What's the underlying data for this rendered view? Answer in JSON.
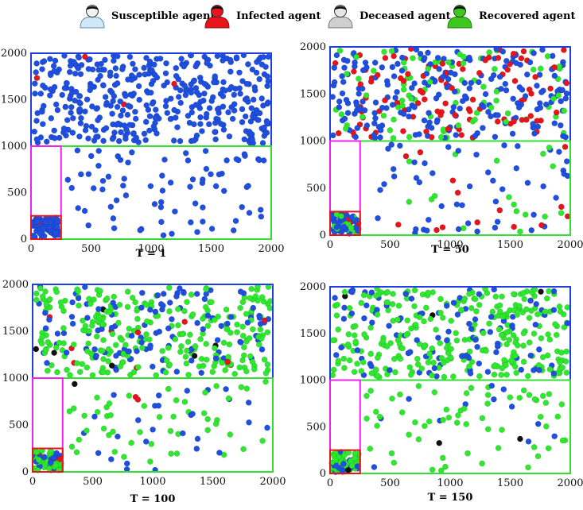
{
  "legend": [
    {
      "label": "Susceptible agent",
      "icon": "person-icon",
      "color": "#cfe8f7"
    },
    {
      "label": "Infected agent",
      "icon": "person-icon",
      "color": "#e8141b"
    },
    {
      "label": "Deceased agent",
      "icon": "person-icon",
      "color": "#cfcfcf"
    },
    {
      "label": "Recovered agent",
      "icon": "person-icon",
      "color": "#3cc81e"
    }
  ],
  "colors": {
    "susceptible": "#1f4fe0",
    "infected": "#e8141b",
    "deceased": "#111111",
    "recovered": "#2ee82e",
    "region_top": "#1f3fe0",
    "region_bottom": "#33dd33",
    "region_corridor": "#ee22ee",
    "region_home": "#e8141b"
  },
  "chart_data": [
    {
      "type": "scatter",
      "title": "T = 1",
      "xlim": [
        0,
        2000
      ],
      "ylim": [
        0,
        2000
      ],
      "xticks": [
        0,
        500,
        1000,
        1500,
        2000
      ],
      "yticks": [
        0,
        500,
        1000,
        1500,
        2000
      ],
      "regions": [
        {
          "name": "upper-zone",
          "x": [
            0,
            2000
          ],
          "y": [
            1000,
            2000
          ]
        },
        {
          "name": "lower-zone",
          "x": [
            0,
            2000
          ],
          "y": [
            0,
            1000
          ]
        },
        {
          "name": "corridor",
          "x": [
            0,
            250
          ],
          "y": [
            0,
            1000
          ]
        },
        {
          "name": "home-zone",
          "x": [
            0,
            250
          ],
          "y": [
            0,
            250
          ]
        }
      ],
      "agents": {
        "upper": 420,
        "lower": 75,
        "home": 80
      },
      "mix": {
        "susceptible": 0.99,
        "infected": 0.01,
        "recovered": 0,
        "deceased": 0
      }
    },
    {
      "type": "scatter",
      "title": "T = 50",
      "xlim": [
        0,
        2000
      ],
      "ylim": [
        0,
        2000
      ],
      "xticks": [
        0,
        500,
        1000,
        1500,
        2000
      ],
      "yticks": [
        0,
        500,
        1000,
        1500,
        2000
      ],
      "regions": [
        {
          "name": "upper-zone",
          "x": [
            0,
            2000
          ],
          "y": [
            1000,
            2000
          ]
        },
        {
          "name": "lower-zone",
          "x": [
            0,
            2000
          ],
          "y": [
            0,
            1000
          ]
        },
        {
          "name": "corridor",
          "x": [
            0,
            250
          ],
          "y": [
            0,
            1000
          ]
        },
        {
          "name": "home-zone",
          "x": [
            0,
            250
          ],
          "y": [
            0,
            250
          ]
        }
      ],
      "agents": {
        "upper": 400,
        "lower": 80,
        "home": 70
      },
      "mix": {
        "susceptible": 0.55,
        "infected": 0.22,
        "recovered": 0.23,
        "deceased": 0
      }
    },
    {
      "type": "scatter",
      "title": "T = 100",
      "xlim": [
        0,
        2000
      ],
      "ylim": [
        0,
        2000
      ],
      "xticks": [
        0,
        500,
        1000,
        1500,
        2000
      ],
      "yticks": [
        0,
        500,
        1000,
        1500,
        2000
      ],
      "regions": [
        {
          "name": "upper-zone",
          "x": [
            0,
            2000
          ],
          "y": [
            1000,
            2000
          ]
        },
        {
          "name": "lower-zone",
          "x": [
            0,
            2000
          ],
          "y": [
            0,
            1000
          ]
        },
        {
          "name": "corridor",
          "x": [
            0,
            250
          ],
          "y": [
            0,
            1000
          ]
        },
        {
          "name": "home-zone",
          "x": [
            0,
            250
          ],
          "y": [
            0,
            250
          ]
        }
      ],
      "agents": {
        "upper": 400,
        "lower": 80,
        "home": 75
      },
      "mix": {
        "susceptible": 0.3,
        "infected": 0.03,
        "recovered": 0.66,
        "deceased": 0.01
      }
    },
    {
      "type": "scatter",
      "title": "T = 150",
      "xlim": [
        0,
        2000
      ],
      "ylim": [
        0,
        2000
      ],
      "xticks": [
        0,
        500,
        1000,
        1500,
        2000
      ],
      "yticks": [
        0,
        500,
        1000,
        1500,
        2000
      ],
      "regions": [
        {
          "name": "upper-zone",
          "x": [
            0,
            2000
          ],
          "y": [
            1000,
            2000
          ]
        },
        {
          "name": "lower-zone",
          "x": [
            0,
            2000
          ],
          "y": [
            0,
            1000
          ]
        },
        {
          "name": "corridor",
          "x": [
            0,
            250
          ],
          "y": [
            0,
            1000
          ]
        },
        {
          "name": "home-zone",
          "x": [
            0,
            250
          ],
          "y": [
            0,
            250
          ]
        }
      ],
      "agents": {
        "upper": 400,
        "lower": 75,
        "home": 75
      },
      "mix": {
        "susceptible": 0.25,
        "infected": 0,
        "recovered": 0.74,
        "deceased": 0.01
      }
    }
  ]
}
